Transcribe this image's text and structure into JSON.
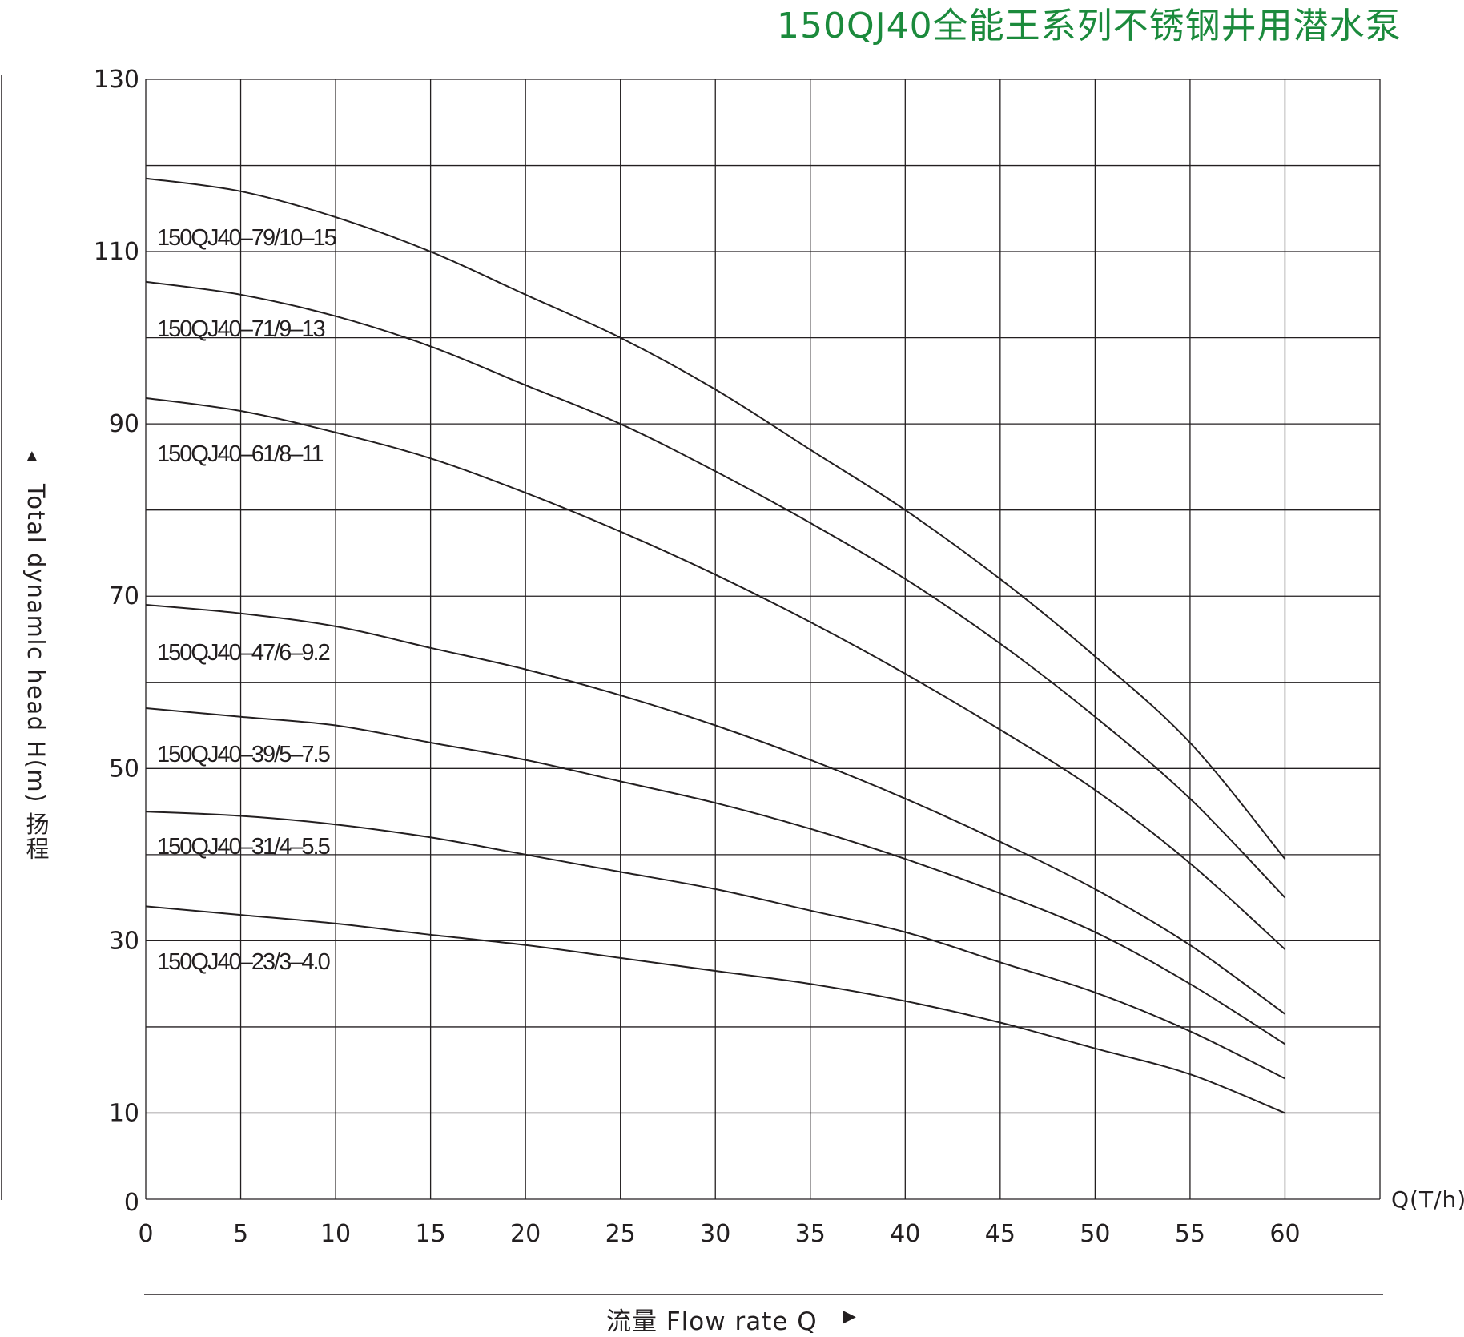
{
  "chart_data": {
    "type": "line",
    "title": "150QJ40全能王系列不锈钢井用潜水泵",
    "xlabel": "流量  Flow rate Q",
    "ylabel": "Total dynamlc head H(m) 扬程",
    "x_unit": "Q(T/h)",
    "xlim": [
      0,
      65
    ],
    "ylim": [
      0,
      130
    ],
    "x_ticks": [
      "0",
      "5",
      "10",
      "15",
      "20",
      "25",
      "30",
      "35",
      "40",
      "45",
      "50",
      "55",
      "60"
    ],
    "y_ticks": [
      "0",
      "10",
      "30",
      "50",
      "70",
      "90",
      "110",
      "130"
    ],
    "grid": true,
    "x": [
      0,
      5,
      10,
      15,
      20,
      25,
      30,
      35,
      40,
      45,
      50,
      55,
      60
    ],
    "series": [
      {
        "name": "150QJ40–79/10–15",
        "values": [
          118.5,
          117,
          114,
          110,
          105,
          100,
          94,
          87,
          80,
          72,
          63,
          53,
          39.5
        ]
      },
      {
        "name": "150QJ40–71/9–13",
        "values": [
          106.5,
          105,
          102.5,
          99,
          94.5,
          90,
          84.5,
          78.5,
          72,
          64.5,
          56,
          46.5,
          35
        ]
      },
      {
        "name": "150QJ40–61/8–11",
        "values": [
          93,
          91.5,
          89,
          86,
          82,
          77.5,
          72.5,
          67,
          61,
          54.5,
          47.5,
          39,
          29
        ]
      },
      {
        "name": "150QJ40–47/6–9.2",
        "values": [
          69,
          68,
          66.5,
          64,
          61.5,
          58.5,
          55,
          51,
          46.5,
          41.5,
          36,
          29.5,
          21.5
        ]
      },
      {
        "name": "150QJ40–39/5–7.5",
        "values": [
          57,
          56,
          55,
          53,
          51,
          48.5,
          46,
          43,
          39.5,
          35.5,
          31,
          25,
          18
        ]
      },
      {
        "name": "150QJ40–31/4–5.5",
        "values": [
          45,
          44.5,
          43.5,
          42,
          40,
          38,
          36,
          33.5,
          31,
          27.5,
          24,
          19.5,
          14
        ]
      },
      {
        "name": "150QJ40–23/3–4.0",
        "values": [
          34,
          33,
          32,
          30.7,
          29.5,
          28,
          26.5,
          25,
          23,
          20.5,
          17.5,
          14.5,
          10
        ]
      }
    ]
  },
  "icons": {
    "y_arrow": "triangle-up-icon",
    "x_arrow": "triangle-right-icon"
  },
  "glyphs": {
    "up": "▲",
    "right": "▶"
  }
}
